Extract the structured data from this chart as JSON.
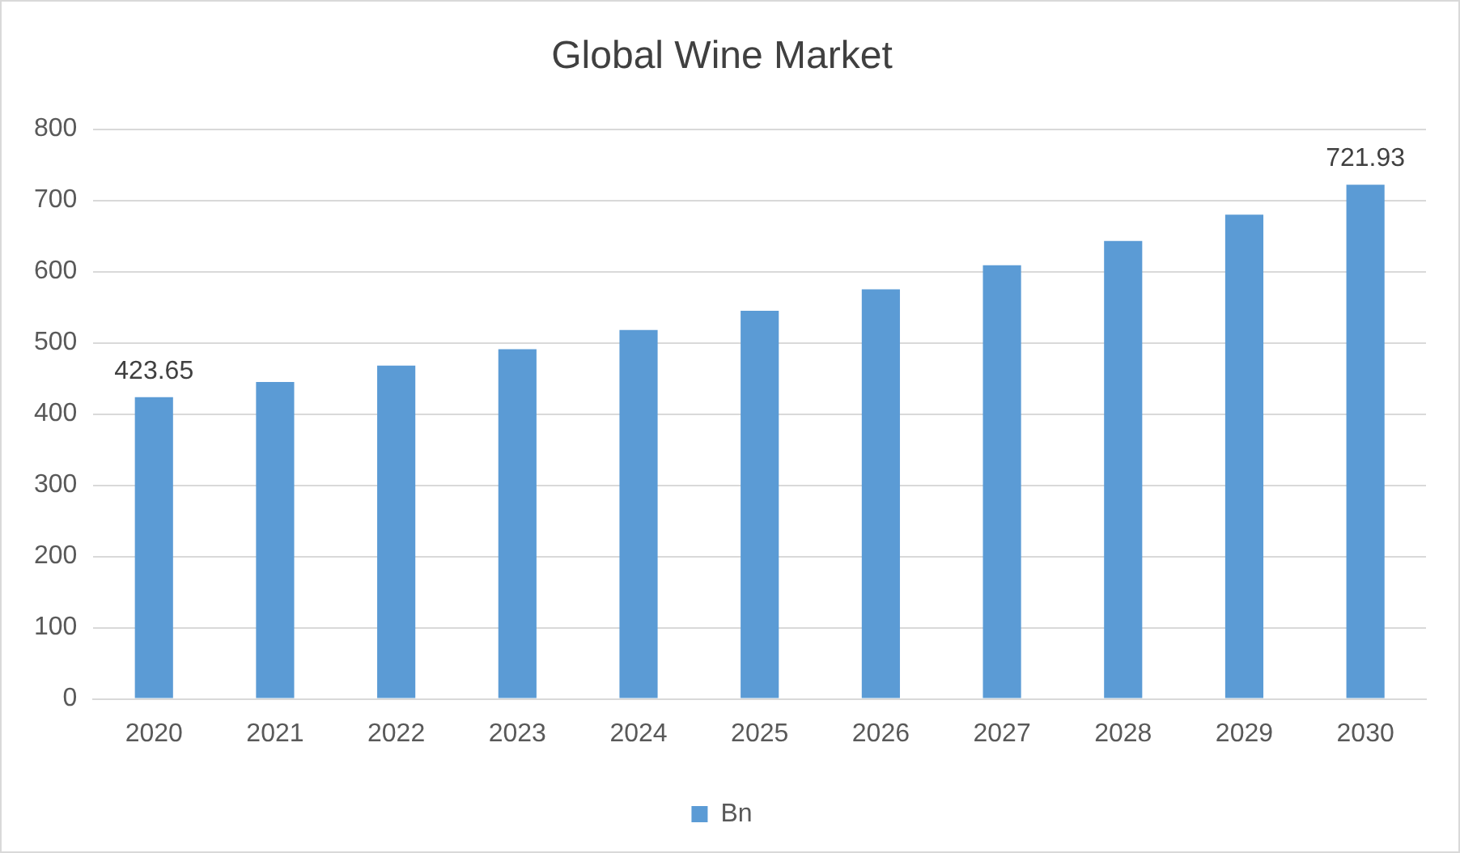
{
  "chart_data": {
    "type": "bar",
    "title": "Global Wine Market",
    "categories": [
      "2020",
      "2021",
      "2022",
      "2023",
      "2024",
      "2025",
      "2026",
      "2027",
      "2028",
      "2029",
      "2030"
    ],
    "series": [
      {
        "name": "Bn",
        "color": "#5b9bd5",
        "values": [
          423.65,
          445,
          468,
          491,
          518,
          545,
          575,
          609,
          643,
          680,
          721.93
        ],
        "value_labels": [
          "423.65",
          null,
          null,
          null,
          null,
          null,
          null,
          null,
          null,
          null,
          "721.93"
        ]
      }
    ],
    "ylim": [
      0,
      800
    ],
    "yticks": [
      0,
      100,
      200,
      300,
      400,
      500,
      600,
      700,
      800
    ],
    "grid": "y",
    "legend": "bottom"
  }
}
